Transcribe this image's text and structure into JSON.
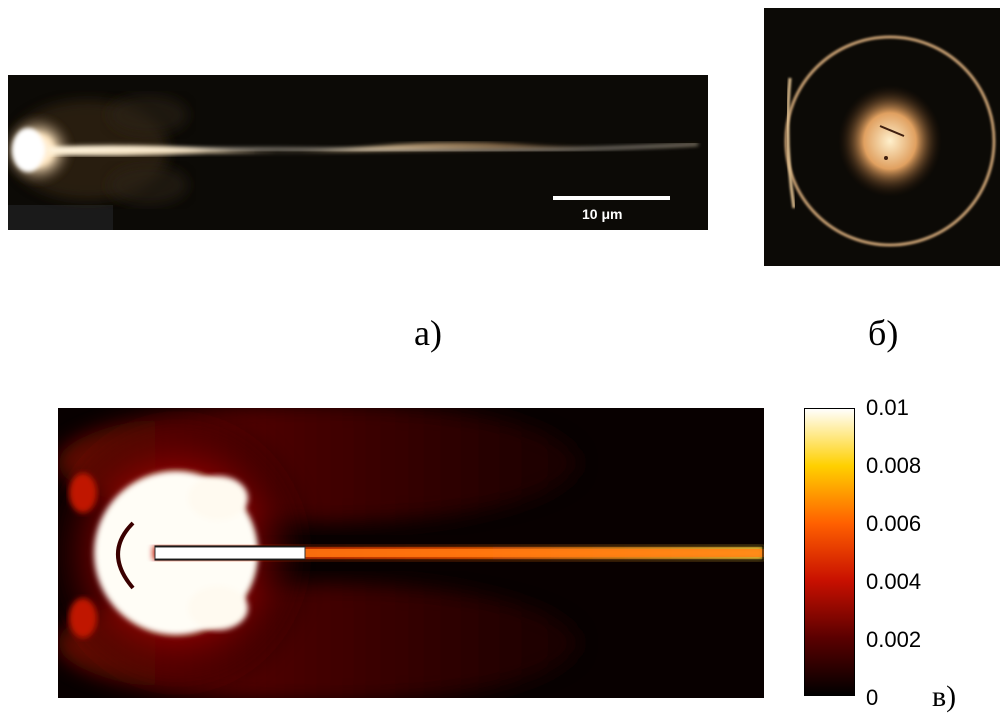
{
  "panels": {
    "a": {
      "label": "a)",
      "scale_bar": "10 μm"
    },
    "b": {
      "label": "б)"
    },
    "c": {
      "label": "в)"
    }
  },
  "colorbar": {
    "ticks": [
      "0.01",
      "0.008",
      "0.006",
      "0.004",
      "0.002",
      "0"
    ],
    "min": 0,
    "max": 0.01,
    "colormap": [
      "#000000",
      "#5a0000",
      "#c81000",
      "#ff6000",
      "#ffd000",
      "#ffffff"
    ]
  }
}
